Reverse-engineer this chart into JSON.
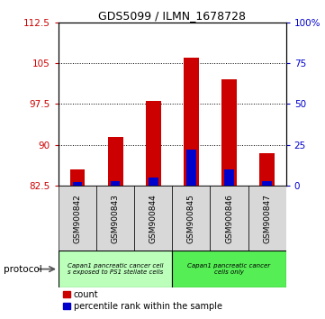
{
  "title": "GDS5099 / ILMN_1678728",
  "samples": [
    "GSM900842",
    "GSM900843",
    "GSM900844",
    "GSM900845",
    "GSM900846",
    "GSM900847"
  ],
  "counts": [
    85.5,
    91.5,
    98.0,
    106.0,
    102.0,
    88.5
  ],
  "percentile_ranks": [
    2.0,
    3.0,
    5.0,
    22.0,
    10.0,
    3.0
  ],
  "ylim_left": [
    82.5,
    112.5
  ],
  "yticks_left": [
    82.5,
    90.0,
    97.5,
    105.0,
    112.5
  ],
  "ylim_right": [
    0,
    100
  ],
  "yticks_right": [
    0,
    25,
    50,
    75,
    100
  ],
  "bar_color": "#cc0000",
  "percentile_color": "#0000cc",
  "left_tick_color": "#cc0000",
  "right_tick_color": "#0000cc",
  "group1_label": "Capan1 pancreatic cancer cell\ns exposed to PS1 stellate cells",
  "group2_label": "Capan1 pancreatic cancer\ncells only",
  "group1_color": "#bbffbb",
  "group2_color": "#55ee55",
  "protocol_label": "protocol",
  "legend_count_label": "count",
  "legend_percentile_label": "percentile rank within the sample",
  "base_value": 82.5,
  "bar_width": 0.4,
  "percentile_bar_width": 0.25
}
